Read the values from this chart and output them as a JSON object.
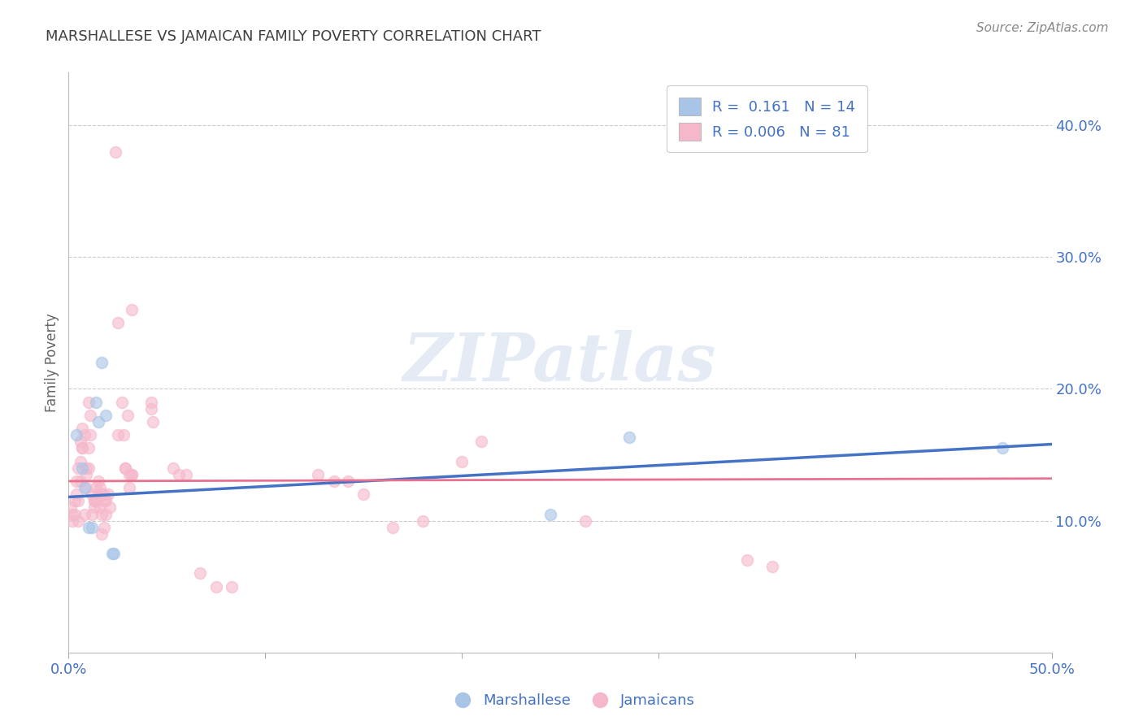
{
  "title": "MARSHALLESE VS JAMAICAN FAMILY POVERTY CORRELATION CHART",
  "source": "Source: ZipAtlas.com",
  "ylabel": "Family Poverty",
  "xlim": [
    0.0,
    0.5
  ],
  "ylim": [
    0.0,
    0.44
  ],
  "xticks": [
    0.0,
    0.1,
    0.2,
    0.3,
    0.4,
    0.5
  ],
  "xtick_labels": [
    "0.0%",
    "",
    "",
    "",
    "",
    "50.0%"
  ],
  "yticks": [
    0.1,
    0.2,
    0.3,
    0.4
  ],
  "ytick_labels": [
    "10.0%",
    "20.0%",
    "30.0%",
    "40.0%"
  ],
  "legend_R_marshallese": "0.161",
  "legend_N_marshallese": "14",
  "legend_R_jamaicans": "0.006",
  "legend_N_jamaicans": "81",
  "watermark": "ZIPatlas",
  "marshallese_color": "#a8c4e6",
  "jamaicans_color": "#f5b8cb",
  "marshallese_edge_color": "#a8c4e6",
  "jamaicans_edge_color": "#f5b8cb",
  "marshallese_line_color": "#4472c4",
  "jamaicans_line_color": "#e87090",
  "bg_color": "#ffffff",
  "grid_color": "#cccccc",
  "title_color": "#404040",
  "axis_color": "#4472c4",
  "marker_size": 100,
  "marker_alpha": 0.6,
  "marshallese_points": [
    [
      0.004,
      0.165
    ],
    [
      0.007,
      0.14
    ],
    [
      0.008,
      0.125
    ],
    [
      0.01,
      0.095
    ],
    [
      0.012,
      0.095
    ],
    [
      0.014,
      0.19
    ],
    [
      0.015,
      0.175
    ],
    [
      0.017,
      0.22
    ],
    [
      0.019,
      0.18
    ],
    [
      0.022,
      0.075
    ],
    [
      0.023,
      0.075
    ],
    [
      0.245,
      0.105
    ],
    [
      0.285,
      0.163
    ],
    [
      0.475,
      0.155
    ]
  ],
  "jamaicans_points": [
    [
      0.001,
      0.11
    ],
    [
      0.002,
      0.105
    ],
    [
      0.002,
      0.1
    ],
    [
      0.003,
      0.105
    ],
    [
      0.003,
      0.115
    ],
    [
      0.004,
      0.12
    ],
    [
      0.004,
      0.13
    ],
    [
      0.005,
      0.115
    ],
    [
      0.005,
      0.1
    ],
    [
      0.005,
      0.14
    ],
    [
      0.006,
      0.145
    ],
    [
      0.006,
      0.13
    ],
    [
      0.006,
      0.16
    ],
    [
      0.007,
      0.155
    ],
    [
      0.007,
      0.17
    ],
    [
      0.007,
      0.155
    ],
    [
      0.008,
      0.105
    ],
    [
      0.008,
      0.165
    ],
    [
      0.009,
      0.125
    ],
    [
      0.009,
      0.14
    ],
    [
      0.009,
      0.135
    ],
    [
      0.01,
      0.155
    ],
    [
      0.01,
      0.19
    ],
    [
      0.01,
      0.14
    ],
    [
      0.011,
      0.165
    ],
    [
      0.011,
      0.18
    ],
    [
      0.012,
      0.105
    ],
    [
      0.012,
      0.12
    ],
    [
      0.013,
      0.11
    ],
    [
      0.013,
      0.115
    ],
    [
      0.013,
      0.115
    ],
    [
      0.014,
      0.125
    ],
    [
      0.014,
      0.115
    ],
    [
      0.015,
      0.12
    ],
    [
      0.015,
      0.13
    ],
    [
      0.015,
      0.12
    ],
    [
      0.016,
      0.125
    ],
    [
      0.016,
      0.11
    ],
    [
      0.017,
      0.105
    ],
    [
      0.017,
      0.12
    ],
    [
      0.017,
      0.09
    ],
    [
      0.018,
      0.12
    ],
    [
      0.018,
      0.095
    ],
    [
      0.018,
      0.115
    ],
    [
      0.019,
      0.115
    ],
    [
      0.019,
      0.105
    ],
    [
      0.02,
      0.12
    ],
    [
      0.021,
      0.11
    ],
    [
      0.024,
      0.38
    ],
    [
      0.025,
      0.165
    ],
    [
      0.025,
      0.25
    ],
    [
      0.027,
      0.19
    ],
    [
      0.028,
      0.165
    ],
    [
      0.029,
      0.14
    ],
    [
      0.029,
      0.14
    ],
    [
      0.03,
      0.18
    ],
    [
      0.031,
      0.135
    ],
    [
      0.031,
      0.125
    ],
    [
      0.032,
      0.135
    ],
    [
      0.032,
      0.135
    ],
    [
      0.032,
      0.26
    ],
    [
      0.042,
      0.19
    ],
    [
      0.042,
      0.185
    ],
    [
      0.043,
      0.175
    ],
    [
      0.053,
      0.14
    ],
    [
      0.056,
      0.135
    ],
    [
      0.06,
      0.135
    ],
    [
      0.067,
      0.06
    ],
    [
      0.075,
      0.05
    ],
    [
      0.083,
      0.05
    ],
    [
      0.127,
      0.135
    ],
    [
      0.135,
      0.13
    ],
    [
      0.142,
      0.13
    ],
    [
      0.15,
      0.12
    ],
    [
      0.165,
      0.095
    ],
    [
      0.18,
      0.1
    ],
    [
      0.2,
      0.145
    ],
    [
      0.21,
      0.16
    ],
    [
      0.263,
      0.1
    ],
    [
      0.345,
      0.07
    ],
    [
      0.358,
      0.065
    ]
  ],
  "marshallese_line": {
    "x0": 0.0,
    "y0": 0.118,
    "x1": 0.5,
    "y1": 0.158
  },
  "jamaicans_line": {
    "x0": 0.0,
    "y0": 0.13,
    "x1": 0.5,
    "y1": 0.132
  }
}
